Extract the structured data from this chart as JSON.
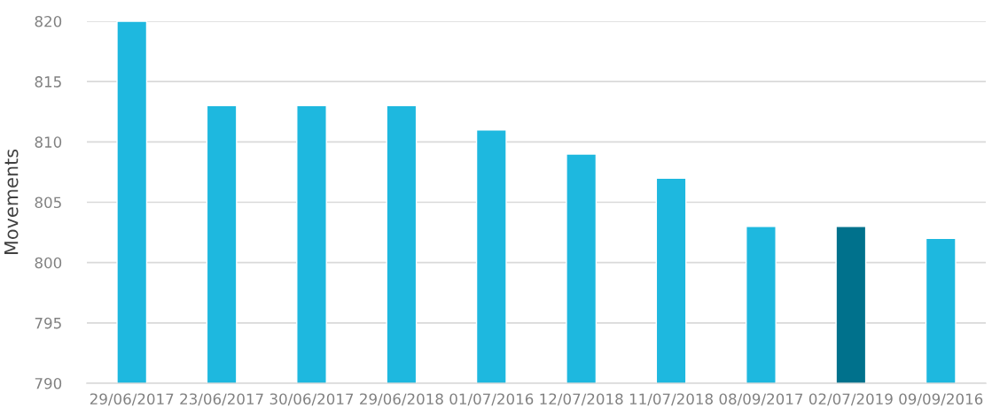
{
  "chart_data": {
    "type": "bar",
    "ylabel": "Movements",
    "categories": [
      "29/06/2017",
      "23/06/2017",
      "30/06/2017",
      "29/06/2018",
      "01/07/2016",
      "12/07/2018",
      "11/07/2018",
      "08/09/2017",
      "02/07/2019",
      "09/09/2016"
    ],
    "values": [
      820,
      813,
      813,
      813,
      811,
      809,
      807,
      803,
      803,
      802
    ],
    "colors": [
      "#1eb8df",
      "#1eb8df",
      "#1eb8df",
      "#1eb8df",
      "#1eb8df",
      "#1eb8df",
      "#1eb8df",
      "#1eb8df",
      "#00718c",
      "#1eb8df"
    ],
    "ylim": [
      790,
      820
    ],
    "yticks": [
      790,
      795,
      800,
      805,
      810,
      815,
      820
    ],
    "grid": "y",
    "legend": false
  }
}
